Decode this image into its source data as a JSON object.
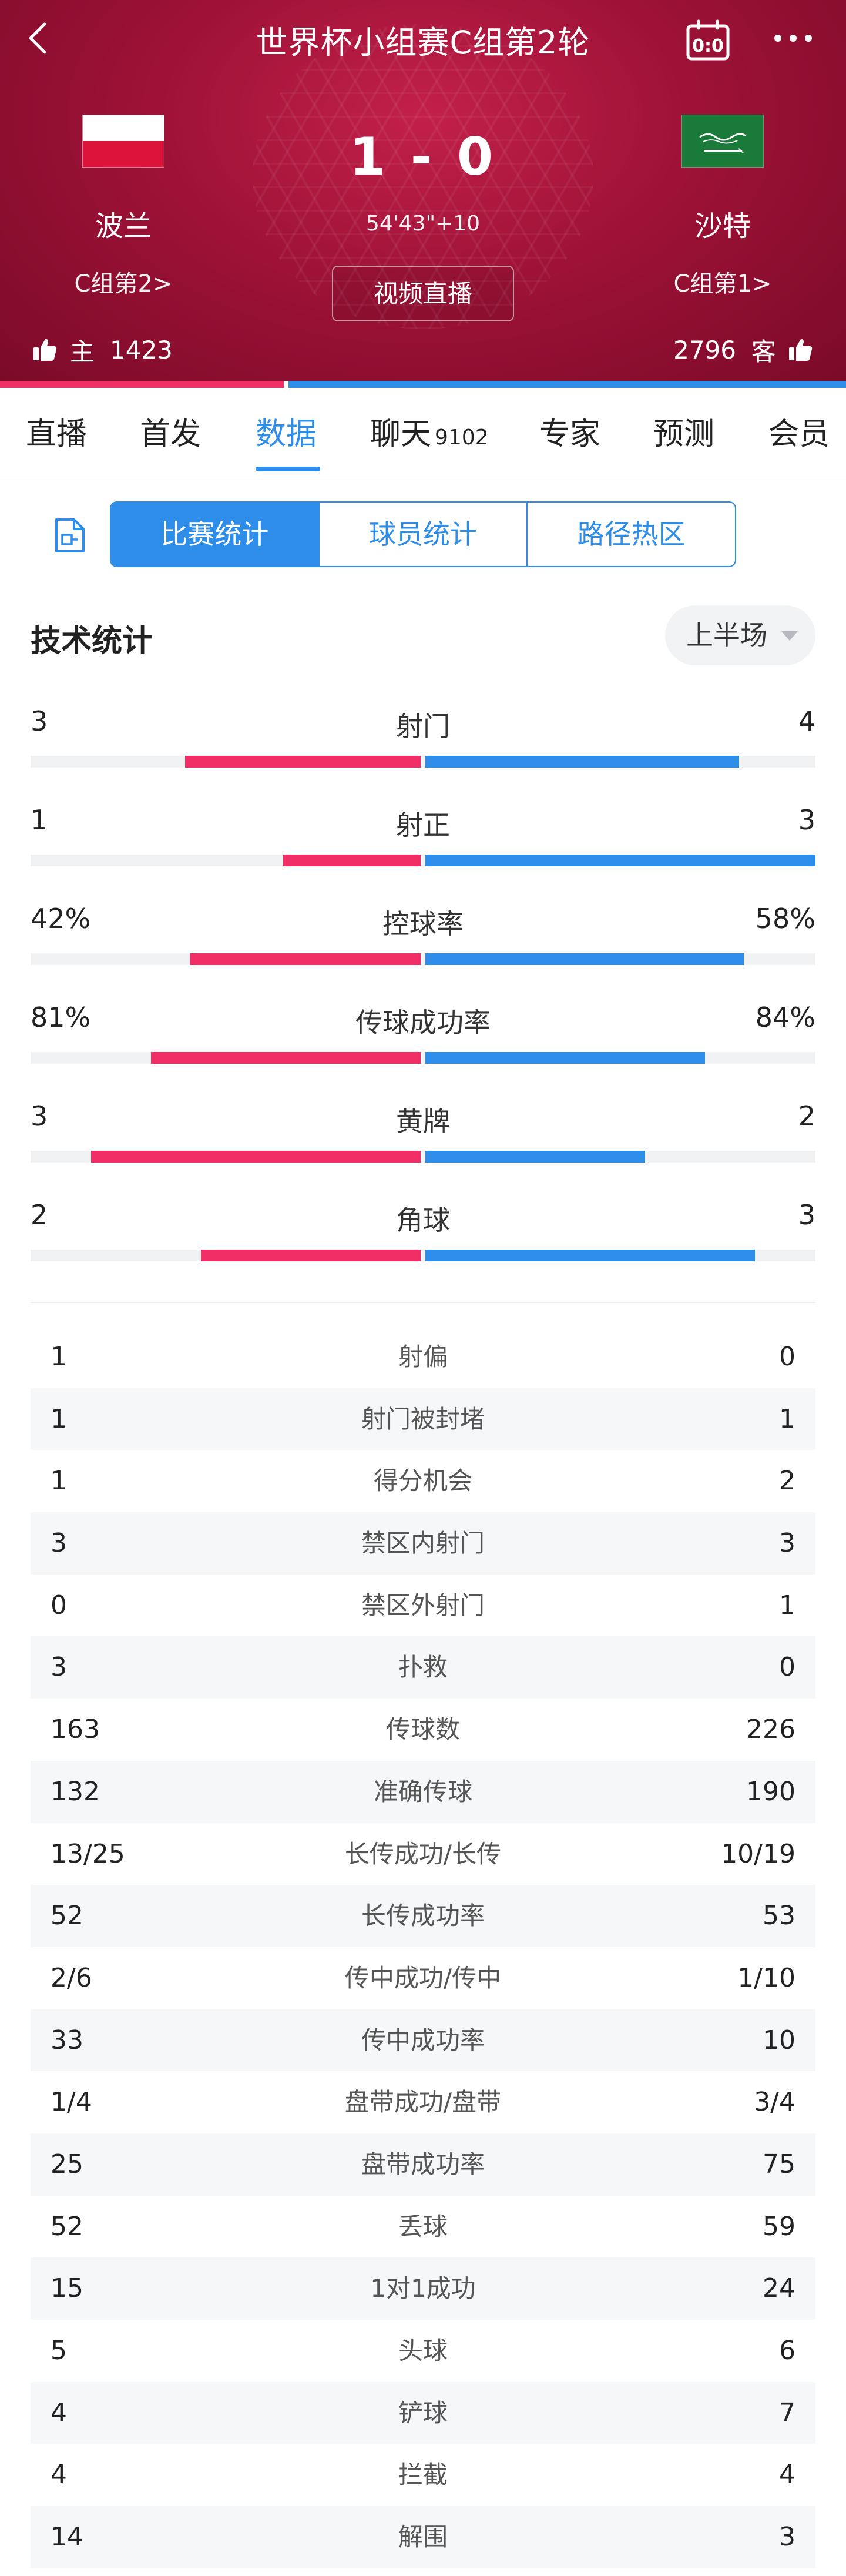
{
  "header": {
    "title": "世界杯小组赛C组第2轮",
    "score": "1 - 0",
    "match_time": "54'43\"+10",
    "video_button": "视频直播",
    "home_team": {
      "name": "波兰",
      "rank": "C组第2>"
    },
    "away_team": {
      "name": "沙特",
      "rank": "C组第1>"
    },
    "home_support": {
      "label": "主",
      "count": "1423"
    },
    "away_support": {
      "label": "客",
      "count": "2796"
    },
    "support_split": {
      "home_fraction": 0.337,
      "away_fraction": 0.663
    },
    "colors": {
      "home": "#ef2f65",
      "away": "#2d8de8",
      "header_bg": "#9e1237"
    }
  },
  "tabs": [
    {
      "label": "直播"
    },
    {
      "label": "首发"
    },
    {
      "label": "数据",
      "active": true
    },
    {
      "label": "聊天",
      "count": "9102"
    },
    {
      "label": "专家"
    },
    {
      "label": "预测"
    },
    {
      "label": "会员"
    }
  ],
  "segments": [
    {
      "label": "比赛统计",
      "active": true
    },
    {
      "label": "球员统计"
    },
    {
      "label": "路径热区"
    }
  ],
  "stats": {
    "title": "技术统计",
    "period": "上半场",
    "bar_stats": [
      {
        "name": "射门",
        "home": "3",
        "away": "4",
        "home_val": 3,
        "away_val": 4
      },
      {
        "name": "射正",
        "home": "1",
        "away": "3",
        "home_val": 1,
        "away_val": 3
      },
      {
        "name": "控球率",
        "home": "42%",
        "away": "58%",
        "home_val": 42,
        "away_val": 58
      },
      {
        "name": "传球成功率",
        "home": "81%",
        "away": "84%",
        "home_val": 81,
        "away_val": 84
      },
      {
        "name": "黄牌",
        "home": "3",
        "away": "2",
        "home_val": 3,
        "away_val": 2
      },
      {
        "name": "角球",
        "home": "2",
        "away": "3",
        "home_val": 2,
        "away_val": 3
      }
    ],
    "table_stats": [
      {
        "name": "射偏",
        "home": "1",
        "away": "0"
      },
      {
        "name": "射门被封堵",
        "home": "1",
        "away": "1"
      },
      {
        "name": "得分机会",
        "home": "1",
        "away": "2"
      },
      {
        "name": "禁区内射门",
        "home": "3",
        "away": "3"
      },
      {
        "name": "禁区外射门",
        "home": "0",
        "away": "1"
      },
      {
        "name": "扑救",
        "home": "3",
        "away": "0"
      },
      {
        "name": "传球数",
        "home": "163",
        "away": "226"
      },
      {
        "name": "准确传球",
        "home": "132",
        "away": "190"
      },
      {
        "name": "长传成功/长传",
        "home": "13/25",
        "away": "10/19"
      },
      {
        "name": "长传成功率",
        "home": "52",
        "away": "53"
      },
      {
        "name": "传中成功/传中",
        "home": "2/6",
        "away": "1/10"
      },
      {
        "name": "传中成功率",
        "home": "33",
        "away": "10"
      },
      {
        "name": "盘带成功/盘带",
        "home": "1/4",
        "away": "3/4"
      },
      {
        "name": "盘带成功率",
        "home": "25",
        "away": "75"
      },
      {
        "name": "丢球",
        "home": "52",
        "away": "59"
      },
      {
        "name": "1对1成功",
        "home": "15",
        "away": "24"
      },
      {
        "name": "头球",
        "home": "5",
        "away": "6"
      },
      {
        "name": "铲球",
        "home": "4",
        "away": "7"
      },
      {
        "name": "拦截",
        "home": "4",
        "away": "4"
      },
      {
        "name": "解围",
        "home": "14",
        "away": "3"
      }
    ]
  },
  "icons": [
    "back-arrow-icon",
    "tactics-board-icon",
    "more-dots-icon",
    "thumbs-up-icon",
    "document-icon",
    "caret-down-icon",
    "poland-flag-icon",
    "saudi-flag-icon"
  ]
}
